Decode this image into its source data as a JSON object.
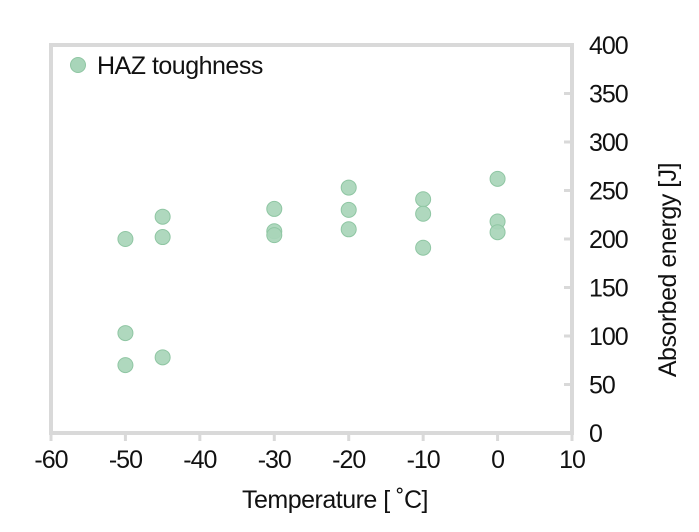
{
  "chart_data": {
    "type": "scatter",
    "title": "",
    "xlabel": "Temperature [ ˚C]",
    "ylabel": "Absorbed energy [J]",
    "xlim": [
      -60,
      10
    ],
    "ylim": [
      0,
      400
    ],
    "x_ticks": [
      -60,
      -50,
      -40,
      -30,
      -20,
      -10,
      0,
      10
    ],
    "y_ticks": [
      0,
      50,
      100,
      150,
      200,
      250,
      300,
      350,
      400
    ],
    "y_axis_position": "right",
    "grid": false,
    "legend_position": "upper left",
    "series": [
      {
        "name": "HAZ toughness",
        "color": "#a8d5b9",
        "edge_color": "#8fc6a3",
        "points": [
          {
            "x": -50,
            "y": 200
          },
          {
            "x": -50,
            "y": 103
          },
          {
            "x": -50,
            "y": 70
          },
          {
            "x": -45,
            "y": 223
          },
          {
            "x": -45,
            "y": 202
          },
          {
            "x": -45,
            "y": 78
          },
          {
            "x": -30,
            "y": 231
          },
          {
            "x": -30,
            "y": 208
          },
          {
            "x": -30,
            "y": 204
          },
          {
            "x": -20,
            "y": 253
          },
          {
            "x": -20,
            "y": 230
          },
          {
            "x": -20,
            "y": 210
          },
          {
            "x": -10,
            "y": 241
          },
          {
            "x": -10,
            "y": 226
          },
          {
            "x": -10,
            "y": 191
          },
          {
            "x": 0,
            "y": 262
          },
          {
            "x": 0,
            "y": 218
          },
          {
            "x": 0,
            "y": 207
          }
        ]
      }
    ]
  },
  "legend": {
    "label": "HAZ toughness"
  },
  "axes": {
    "x_title": "Temperature [ ˚C]",
    "y_title": "Absorbed energy [J]",
    "frame_color": "#d9d9d9"
  }
}
